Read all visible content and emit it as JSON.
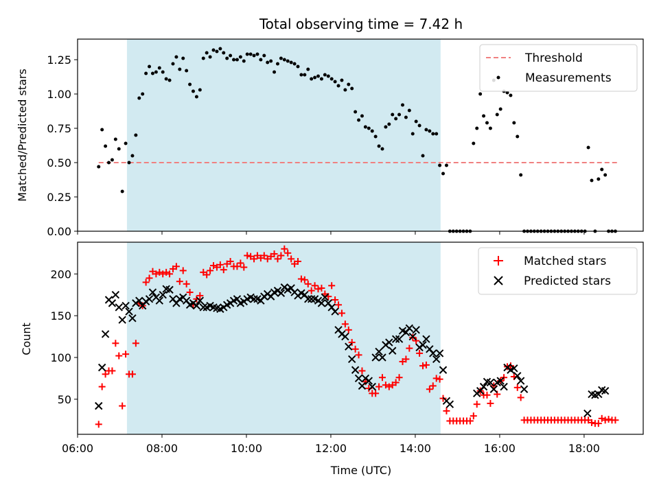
{
  "chart_data": [
    {
      "type": "scatter",
      "title": "Total observing time = 7.42 h",
      "ylabel": "Matched/Predicted stars",
      "xlabel": "",
      "xlim": [
        6.0,
        19.4
      ],
      "ylim": [
        0.0,
        1.4
      ],
      "yticks": [
        0.0,
        0.25,
        0.5,
        0.75,
        1.0,
        1.25
      ],
      "ytick_labels": [
        "0.00",
        "0.25",
        "0.50",
        "0.75",
        "1.00",
        "1.25"
      ],
      "xticks": [
        6,
        8,
        10,
        12,
        14,
        16,
        18
      ],
      "xtick_labels": [
        "",
        "",
        "",
        "",
        "",
        "",
        ""
      ],
      "shaded_region": {
        "x": [
          7.17,
          14.6
        ],
        "color": "#add8e6"
      },
      "legend": {
        "position": "top-right",
        "entries": [
          "Threshold",
          "Measurements"
        ]
      },
      "threshold": {
        "name": "Threshold",
        "value": 0.5,
        "x": [
          6.5,
          18.8
        ],
        "color": "#f08080",
        "style": "dashed"
      },
      "series": [
        {
          "name": "Measurements",
          "color": "#000000",
          "x": [
            6.5,
            6.58,
            6.66,
            6.74,
            6.82,
            6.9,
            6.98,
            7.06,
            7.14,
            7.22,
            7.3,
            7.38,
            7.46,
            7.54,
            7.62,
            7.7,
            7.78,
            7.86,
            7.94,
            8.02,
            8.1,
            8.18,
            8.26,
            8.34,
            8.42,
            8.5,
            8.58,
            8.66,
            8.74,
            8.82,
            8.9,
            8.98,
            9.06,
            9.14,
            9.22,
            9.3,
            9.38,
            9.46,
            9.54,
            9.62,
            9.7,
            9.78,
            9.86,
            9.94,
            10.02,
            10.1,
            10.18,
            10.26,
            10.34,
            10.42,
            10.5,
            10.58,
            10.66,
            10.74,
            10.82,
            10.9,
            10.98,
            11.06,
            11.14,
            11.22,
            11.3,
            11.38,
            11.46,
            11.54,
            11.62,
            11.7,
            11.78,
            11.86,
            11.94,
            12.02,
            12.1,
            12.18,
            12.26,
            12.34,
            12.42,
            12.5,
            12.58,
            12.66,
            12.74,
            12.82,
            12.9,
            12.98,
            13.06,
            13.14,
            13.22,
            13.3,
            13.38,
            13.46,
            13.54,
            13.62,
            13.7,
            13.78,
            13.86,
            13.94,
            14.02,
            14.1,
            14.18,
            14.26,
            14.34,
            14.42,
            14.5,
            14.58,
            14.66,
            14.74,
            14.82,
            14.9,
            14.98,
            15.06,
            15.14,
            15.22,
            15.3,
            15.38,
            15.46,
            15.54,
            15.62,
            15.7,
            15.78,
            15.86,
            15.94,
            16.02,
            16.1,
            16.18,
            16.26,
            16.34,
            16.42,
            16.5,
            16.58,
            16.66,
            16.74,
            16.82,
            16.9,
            16.98,
            17.06,
            17.14,
            17.22,
            17.3,
            17.38,
            17.46,
            17.54,
            17.62,
            17.7,
            17.78,
            17.86,
            17.94,
            18.02,
            18.1,
            18.18,
            18.26,
            18.34,
            18.42,
            18.5,
            18.58,
            18.66,
            18.74
          ],
          "y": [
            0.47,
            0.74,
            0.62,
            0.5,
            0.52,
            0.67,
            0.6,
            0.29,
            0.64,
            0.5,
            0.55,
            0.7,
            0.97,
            1.0,
            1.15,
            1.2,
            1.15,
            1.16,
            1.19,
            1.16,
            1.11,
            1.1,
            1.22,
            1.27,
            1.18,
            1.26,
            1.17,
            1.07,
            1.02,
            0.98,
            1.03,
            1.26,
            1.3,
            1.27,
            1.32,
            1.31,
            1.33,
            1.3,
            1.26,
            1.28,
            1.25,
            1.25,
            1.27,
            1.24,
            1.29,
            1.29,
            1.28,
            1.29,
            1.25,
            1.28,
            1.23,
            1.24,
            1.16,
            1.22,
            1.26,
            1.25,
            1.24,
            1.23,
            1.22,
            1.2,
            1.14,
            1.14,
            1.18,
            1.11,
            1.12,
            1.13,
            1.11,
            1.14,
            1.13,
            1.11,
            1.09,
            1.06,
            1.1,
            1.03,
            1.07,
            1.04,
            0.87,
            0.81,
            0.84,
            0.76,
            0.75,
            0.73,
            0.69,
            0.62,
            0.6,
            0.76,
            0.78,
            0.85,
            0.82,
            0.85,
            0.92,
            0.83,
            0.88,
            0.71,
            0.8,
            0.77,
            0.55,
            0.74,
            0.73,
            0.71,
            0.71,
            0.48,
            0.42,
            0.48,
            0.0,
            0.0,
            0.0,
            0.0,
            0.0,
            0.0,
            0.0,
            0.64,
            0.75,
            1.0,
            0.84,
            0.79,
            0.75,
            1.1,
            0.85,
            0.89,
            1.02,
            1.01,
            0.99,
            0.79,
            0.69,
            0.41,
            0.0,
            0.0,
            0.0,
            0.0,
            0.0,
            0.0,
            0.0,
            0.0,
            0.0,
            0.0,
            0.0,
            0.0,
            0.0,
            0.0,
            0.0,
            0.0,
            0.0,
            0.0,
            0.0,
            0.61,
            0.37,
            0.0,
            0.38,
            0.45,
            0.41,
            0.0,
            0.0,
            0.0
          ]
        }
      ]
    },
    {
      "type": "scatter",
      "title": "",
      "ylabel": "Count",
      "xlabel": "Time (UTC)",
      "xlim": [
        6.0,
        19.4
      ],
      "ylim": [
        8,
        238
      ],
      "yticks": [
        50,
        100,
        150,
        200
      ],
      "ytick_labels": [
        "50",
        "100",
        "150",
        "200"
      ],
      "xticks": [
        6,
        8,
        10,
        12,
        14,
        16,
        18
      ],
      "xtick_labels": [
        "06:00",
        "08:00",
        "10:00",
        "12:00",
        "14:00",
        "16:00",
        "18:00"
      ],
      "shaded_region": {
        "x": [
          7.17,
          14.6
        ],
        "color": "#add8e6"
      },
      "legend": {
        "position": "top-right",
        "entries": [
          "Matched stars",
          "Predicted stars"
        ]
      },
      "series": [
        {
          "name": "Matched stars",
          "marker": "plus",
          "color": "#ff0000",
          "x": [
            6.5,
            6.58,
            6.66,
            6.74,
            6.82,
            6.9,
            6.98,
            7.06,
            7.14,
            7.22,
            7.3,
            7.38,
            7.46,
            7.54,
            7.62,
            7.7,
            7.78,
            7.86,
            7.94,
            8.02,
            8.1,
            8.18,
            8.26,
            8.34,
            8.42,
            8.5,
            8.58,
            8.66,
            8.74,
            8.82,
            8.9,
            8.98,
            9.06,
            9.14,
            9.22,
            9.3,
            9.38,
            9.46,
            9.54,
            9.62,
            9.7,
            9.78,
            9.86,
            9.94,
            10.02,
            10.1,
            10.18,
            10.26,
            10.34,
            10.42,
            10.5,
            10.58,
            10.66,
            10.74,
            10.82,
            10.9,
            10.98,
            11.06,
            11.14,
            11.22,
            11.3,
            11.38,
            11.46,
            11.54,
            11.62,
            11.7,
            11.78,
            11.86,
            11.94,
            12.02,
            12.1,
            12.18,
            12.26,
            12.34,
            12.42,
            12.5,
            12.58,
            12.66,
            12.74,
            12.82,
            12.9,
            12.98,
            13.06,
            13.14,
            13.22,
            13.3,
            13.38,
            13.46,
            13.54,
            13.62,
            13.7,
            13.78,
            13.86,
            13.94,
            14.02,
            14.1,
            14.18,
            14.26,
            14.34,
            14.42,
            14.5,
            14.58,
            14.66,
            14.74,
            14.82,
            14.9,
            14.98,
            15.06,
            15.14,
            15.22,
            15.3,
            15.38,
            15.46,
            15.54,
            15.62,
            15.7,
            15.78,
            15.86,
            15.94,
            16.02,
            16.1,
            16.18,
            16.26,
            16.34,
            16.42,
            16.5,
            16.58,
            16.66,
            16.74,
            16.82,
            16.9,
            16.98,
            17.06,
            17.14,
            17.22,
            17.3,
            17.38,
            17.46,
            17.54,
            17.62,
            17.7,
            17.78,
            17.86,
            17.94,
            18.02,
            18.1,
            18.18,
            18.26,
            18.34,
            18.42,
            18.5,
            18.58,
            18.66,
            18.74
          ],
          "y": [
            20,
            65,
            80,
            84,
            84,
            117,
            102,
            42,
            104,
            80,
            80,
            117,
            165,
            162,
            190,
            195,
            203,
            200,
            202,
            200,
            202,
            200,
            206,
            209,
            191,
            204,
            188,
            178,
            163,
            170,
            174,
            202,
            199,
            204,
            210,
            208,
            211,
            205,
            212,
            215,
            209,
            209,
            213,
            208,
            222,
            221,
            218,
            222,
            219,
            222,
            218,
            221,
            224,
            218,
            222,
            230,
            225,
            218,
            212,
            215,
            194,
            193,
            188,
            180,
            186,
            182,
            183,
            176,
            173,
            186,
            169,
            163,
            153,
            140,
            133,
            118,
            110,
            103,
            84,
            71,
            63,
            57,
            57,
            65,
            76,
            67,
            65,
            67,
            70,
            76,
            95,
            98,
            111,
            124,
            120,
            105,
            90,
            91,
            62,
            66,
            75,
            74,
            51,
            36,
            24,
            24,
            24,
            24,
            24,
            24,
            24,
            30,
            44,
            60,
            55,
            55,
            45,
            66,
            56,
            72,
            76,
            89,
            90,
            77,
            64,
            52,
            25,
            25,
            25,
            25,
            25,
            25,
            25,
            25,
            25,
            25,
            25,
            25,
            25,
            25,
            25,
            25,
            25,
            25,
            25,
            25,
            22,
            21,
            21,
            27,
            25,
            26,
            25,
            25
          ]
        },
        {
          "name": "Predicted stars",
          "marker": "x",
          "color": "#000000",
          "x": [
            6.5,
            6.58,
            6.66,
            6.74,
            6.82,
            6.9,
            6.98,
            7.06,
            7.14,
            7.22,
            7.3,
            7.38,
            7.46,
            7.54,
            7.62,
            7.7,
            7.78,
            7.86,
            7.94,
            8.02,
            8.1,
            8.18,
            8.26,
            8.34,
            8.42,
            8.5,
            8.58,
            8.66,
            8.74,
            8.82,
            8.9,
            8.98,
            9.06,
            9.14,
            9.22,
            9.3,
            9.38,
            9.46,
            9.54,
            9.62,
            9.7,
            9.78,
            9.86,
            9.94,
            10.02,
            10.1,
            10.18,
            10.26,
            10.34,
            10.42,
            10.5,
            10.58,
            10.66,
            10.74,
            10.82,
            10.9,
            10.98,
            11.06,
            11.14,
            11.22,
            11.3,
            11.38,
            11.46,
            11.54,
            11.62,
            11.7,
            11.78,
            11.86,
            11.94,
            12.02,
            12.1,
            12.18,
            12.26,
            12.34,
            12.42,
            12.5,
            12.58,
            12.66,
            12.74,
            12.82,
            12.9,
            12.98,
            13.06,
            13.14,
            13.22,
            13.3,
            13.38,
            13.46,
            13.54,
            13.62,
            13.7,
            13.78,
            13.86,
            13.94,
            14.02,
            14.1,
            14.18,
            14.26,
            14.34,
            14.42,
            14.5,
            14.58,
            14.66,
            14.74,
            14.82,
            15.46,
            15.54,
            15.62,
            15.7,
            15.78,
            15.86,
            15.94,
            16.02,
            16.1,
            16.18,
            16.26,
            16.34,
            16.42,
            16.5,
            16.58,
            18.08,
            18.18,
            18.26,
            18.34,
            18.42,
            18.5
          ],
          "y": [
            42,
            88,
            128,
            169,
            165,
            175,
            160,
            145,
            162,
            155,
            147,
            165,
            168,
            162,
            167,
            170,
            178,
            172,
            168,
            175,
            182,
            181,
            170,
            165,
            170,
            172,
            168,
            163,
            165,
            162,
            168,
            160,
            160,
            162,
            160,
            159,
            158,
            160,
            163,
            165,
            168,
            170,
            165,
            167,
            170,
            172,
            170,
            170,
            168,
            173,
            176,
            173,
            178,
            180,
            177,
            184,
            181,
            183,
            178,
            174,
            177,
            175,
            170,
            170,
            170,
            168,
            165,
            172,
            165,
            160,
            155,
            133,
            128,
            125,
            113,
            98,
            85,
            75,
            66,
            75,
            72,
            65,
            100,
            107,
            100,
            115,
            118,
            108,
            122,
            122,
            132,
            130,
            135,
            125,
            133,
            112,
            115,
            122,
            110,
            105,
            98,
            105,
            85,
            48,
            44,
            57,
            60,
            65,
            71,
            70,
            62,
            70,
            72,
            65,
            88,
            85,
            87,
            78,
            72,
            62,
            33,
            56,
            55,
            56,
            61,
            60
          ]
        }
      ]
    }
  ]
}
